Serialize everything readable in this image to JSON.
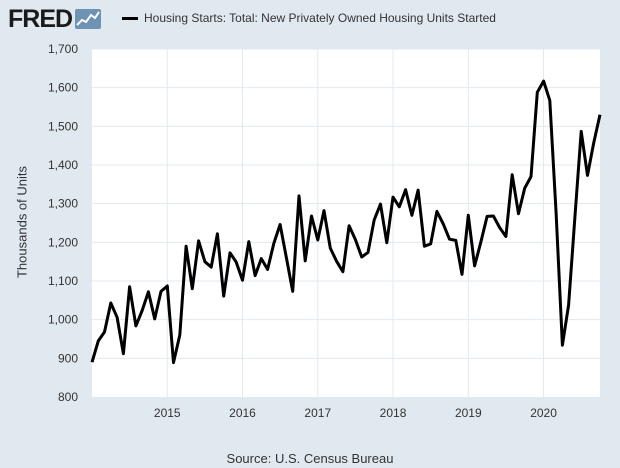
{
  "header": {
    "logo_text": "FRED",
    "logo_icon": "fred-chart-icon",
    "legend_label": "Housing Starts: Total: New Privately Owned Housing Units Started"
  },
  "colors": {
    "background": "#e1e9f0",
    "plot_background": "#ffffff",
    "series": "#000000",
    "grid": "#e1e9f0"
  },
  "footer": {
    "source": "Source: U.S. Census Bureau"
  },
  "chart_data": {
    "type": "line",
    "title": "",
    "xlabel": "",
    "ylabel": "Thousands of Units",
    "ylim": [
      800,
      1700
    ],
    "y_ticks": [
      800,
      900,
      1000,
      1100,
      1200,
      1300,
      1400,
      1500,
      1600,
      1700
    ],
    "y_tick_labels": [
      "800",
      "900",
      "1,000",
      "1,100",
      "1,200",
      "1,300",
      "1,400",
      "1,500",
      "1,600",
      "1,700"
    ],
    "x_tick_labels": [
      "2015",
      "2016",
      "2017",
      "2018",
      "2019",
      "2020"
    ],
    "x_start": "2014-01",
    "x_end": "2020-10",
    "grid": true,
    "legend": "top",
    "series": [
      {
        "name": "Housing Starts: Total: New Privately Owned Housing Units Started",
        "x": [
          "2014-01",
          "2014-02",
          "2014-03",
          "2014-04",
          "2014-05",
          "2014-06",
          "2014-07",
          "2014-08",
          "2014-09",
          "2014-10",
          "2014-11",
          "2014-12",
          "2015-01",
          "2015-02",
          "2015-03",
          "2015-04",
          "2015-05",
          "2015-06",
          "2015-07",
          "2015-08",
          "2015-09",
          "2015-10",
          "2015-11",
          "2015-12",
          "2016-01",
          "2016-02",
          "2016-03",
          "2016-04",
          "2016-05",
          "2016-06",
          "2016-07",
          "2016-08",
          "2016-09",
          "2016-10",
          "2016-11",
          "2016-12",
          "2017-01",
          "2017-02",
          "2017-03",
          "2017-04",
          "2017-05",
          "2017-06",
          "2017-07",
          "2017-08",
          "2017-09",
          "2017-10",
          "2017-11",
          "2017-12",
          "2018-01",
          "2018-02",
          "2018-03",
          "2018-04",
          "2018-05",
          "2018-06",
          "2018-07",
          "2018-08",
          "2018-09",
          "2018-10",
          "2018-11",
          "2018-12",
          "2019-01",
          "2019-02",
          "2019-03",
          "2019-04",
          "2019-05",
          "2019-06",
          "2019-07",
          "2019-08",
          "2019-09",
          "2019-10",
          "2019-11",
          "2019-12",
          "2020-01",
          "2020-02",
          "2020-03",
          "2020-04",
          "2020-05",
          "2020-06",
          "2020-07",
          "2020-08",
          "2020-09",
          "2020-10"
        ],
        "values": [
          890,
          945,
          968,
          1043,
          1006,
          912,
          1085,
          984,
          1024,
          1072,
          1002,
          1073,
          1087,
          889,
          960,
          1190,
          1080,
          1204,
          1150,
          1136,
          1222,
          1061,
          1173,
          1149,
          1102,
          1202,
          1114,
          1158,
          1130,
          1198,
          1246,
          1160,
          1073,
          1320,
          1152,
          1268,
          1206,
          1282,
          1185,
          1151,
          1124,
          1243,
          1207,
          1162,
          1174,
          1258,
          1299,
          1199,
          1317,
          1292,
          1336,
          1270,
          1335,
          1190,
          1196,
          1280,
          1248,
          1208,
          1205,
          1117,
          1270,
          1139,
          1200,
          1267,
          1268,
          1238,
          1215,
          1375,
          1274,
          1340,
          1370,
          1588,
          1617,
          1567,
          1276,
          934,
          1038,
          1265,
          1487,
          1373,
          1457,
          1530
        ]
      }
    ]
  }
}
